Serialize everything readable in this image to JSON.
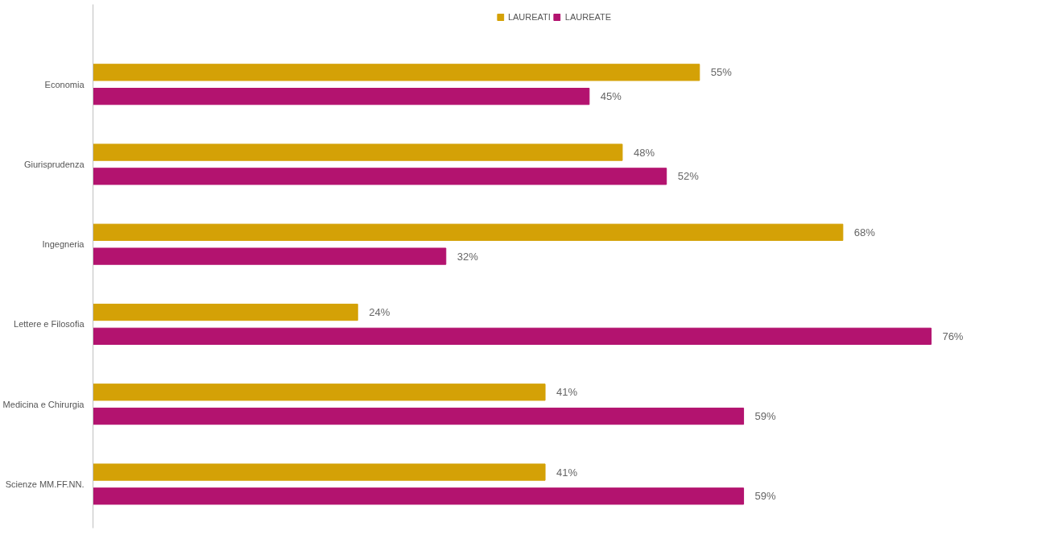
{
  "chart_data": {
    "type": "bar",
    "orientation": "horizontal",
    "legend": "top",
    "grid": false,
    "categories": [
      "Economia",
      "Giurisprudenza",
      "Ingegneria",
      "Lettere e Filosofia",
      "Medicina e Chirurgia",
      "Scienze MM.FF.NN."
    ],
    "series": [
      {
        "name": "LAUREATI",
        "color": "#d4a106",
        "values": [
          55,
          48,
          68,
          24,
          41,
          41
        ],
        "value_labels": [
          "55%",
          "48%",
          "68%",
          "24%",
          "41%",
          "41%"
        ]
      },
      {
        "name": "LAUREATE",
        "color": "#b3136f",
        "values": [
          45,
          52,
          32,
          76,
          59,
          59
        ],
        "value_labels": [
          "45%",
          "52%",
          "32%",
          "76%",
          "59%",
          "59%"
        ]
      }
    ]
  }
}
